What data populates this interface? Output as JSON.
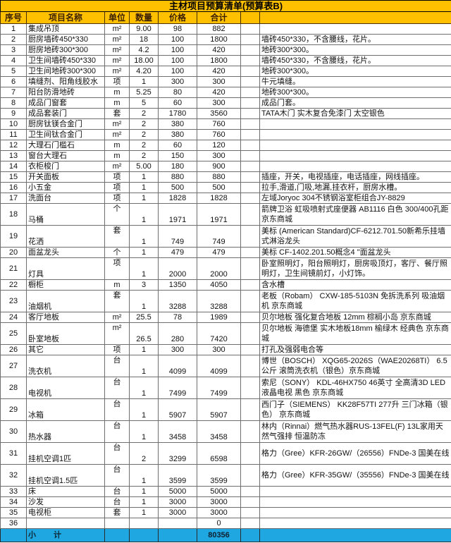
{
  "title": "主材项目预算清单(预算表B)",
  "columns": [
    "序号",
    "项目名称",
    "单位",
    "数量",
    "价格",
    "合计",
    "",
    ""
  ],
  "colors": {
    "header_bg": "#FFC000",
    "subtotal_bg": "#1EA7E0",
    "grid": "#6e6e6e"
  },
  "rows": [
    {
      "no": "1",
      "name": "集成吊顶",
      "unit": "m²",
      "qty": "9.00",
      "price": "98",
      "total": "882",
      "remark": "",
      "tall": false
    },
    {
      "no": "2",
      "name": "厨房墙砖450*330",
      "unit": "m²",
      "qty": "18",
      "price": "100",
      "total": "1800",
      "remark": "墙砖450*330，不含腰线，花片。",
      "tall": false
    },
    {
      "no": "3",
      "name": "厨房地砖300*300",
      "unit": "m²",
      "qty": "4.2",
      "price": "100",
      "total": "420",
      "remark": "地砖300*300。",
      "tall": false
    },
    {
      "no": "4",
      "name": "卫生间墙砖450*330",
      "unit": "m²",
      "qty": "18.00",
      "price": "100",
      "total": "1800",
      "remark": "墙砖450*330，不含腰线，花片。",
      "tall": false
    },
    {
      "no": "5",
      "name": "卫生间地砖300*300",
      "unit": "m²",
      "qty": "4.20",
      "price": "100",
      "total": "420",
      "remark": "地砖300*300。",
      "tall": false
    },
    {
      "no": "6",
      "name": "填缝剂、阳角线胶水",
      "unit": "项",
      "qty": "1",
      "price": "300",
      "total": "300",
      "remark": "牛元填缝。",
      "tall": false
    },
    {
      "no": "7",
      "name": "阳台防滑地砖",
      "unit": "m",
      "qty": "5.25",
      "price": "80",
      "total": "420",
      "remark": "地砖300*300。",
      "tall": false
    },
    {
      "no": "8",
      "name": "成品门窗套",
      "unit": "m",
      "qty": "5",
      "price": "60",
      "total": "300",
      "remark": "成品门套。",
      "tall": false
    },
    {
      "no": "9",
      "name": "成品套装门",
      "unit": "套",
      "qty": "2",
      "price": "1780",
      "total": "3560",
      "remark": "TATA木门 实木复合免漆门 太空银色",
      "tall": false
    },
    {
      "no": "10",
      "name": "厨房钛镁合金门",
      "unit": "m²",
      "qty": "2",
      "price": "380",
      "total": "760",
      "remark": "",
      "tall": false
    },
    {
      "no": "11",
      "name": "卫生间钛合金门",
      "unit": "m²",
      "qty": "2",
      "price": "380",
      "total": "760",
      "remark": "",
      "tall": false
    },
    {
      "no": "12",
      "name": "大理石门槛石",
      "unit": "m",
      "qty": "2",
      "price": "60",
      "total": "120",
      "remark": "",
      "tall": false
    },
    {
      "no": "13",
      "name": "窗台大理石",
      "unit": "m",
      "qty": "2",
      "price": "150",
      "total": "300",
      "remark": "",
      "tall": false
    },
    {
      "no": "14",
      "name": "衣柜梭门",
      "unit": "m²",
      "qty": "5.00",
      "price": "180",
      "total": "900",
      "remark": "",
      "tall": false
    },
    {
      "no": "15",
      "name": "开关面板",
      "unit": "项",
      "qty": "1",
      "price": "880",
      "total": "880",
      "remark": "插座，开关，电视插座，电话插座，网线插座。",
      "tall": false
    },
    {
      "no": "16",
      "name": "小五金",
      "unit": "项",
      "qty": "1",
      "price": "500",
      "total": "500",
      "remark": "拉手,滑道,门吸,地漏,挂衣杆，厨房水槽。",
      "tall": false
    },
    {
      "no": "17",
      "name": "洗面台",
      "unit": "项",
      "qty": "1",
      "price": "1828",
      "total": "1828",
      "remark": "左域Joryoc 304不锈钢浴室柜组合JY-8829",
      "tall": false
    },
    {
      "no": "18",
      "name": "马桶",
      "unit": "个",
      "qty": "1",
      "price": "1971",
      "total": "1971",
      "remark": "箭牌卫浴 虹吸喷射式座便器 AB1116  白色 300/400孔距 京东商城",
      "tall": true
    },
    {
      "no": "19",
      "name": "花洒",
      "unit": "套",
      "qty": "1",
      "price": "749",
      "total": "749",
      "remark": "美标 (American Standard)CF-6212.701.50新希乐挂墙式淋浴龙头",
      "tall": true
    },
    {
      "no": "20",
      "name": "面盆龙头",
      "unit": "个",
      "qty": "1",
      "price": "479",
      "total": "479",
      "remark": "美标 CF-1402.201.50概念4 \"面盆龙头",
      "tall": false
    },
    {
      "no": "21",
      "name": "灯具",
      "unit": "项",
      "qty": "1",
      "price": "2000",
      "total": "2000",
      "remark": "卧室照明灯，阳台照明灯，厨房吸顶灯，客厅、餐厅照明灯，卫生间镜前灯，小灯饰。",
      "tall": true
    },
    {
      "no": "22",
      "name": "橱柜",
      "unit": "m",
      "qty": "3",
      "price": "1350",
      "total": "4050",
      "remark": "含水槽",
      "tall": false
    },
    {
      "no": "23",
      "name": "油烟机",
      "unit": "套",
      "qty": "1",
      "price": "3288",
      "total": "3288",
      "remark": "老板（Robam） CXW-185-5103N 免拆洗系列 吸油烟机  京东商城",
      "tall": true
    },
    {
      "no": "24",
      "name": "客厅地板",
      "unit": "m²",
      "qty": "25.5",
      "price": "78",
      "total": "1989",
      "remark": "贝尔地板 强化复合地板 12mm 棕榈小岛 京东商城",
      "tall": false
    },
    {
      "no": "25",
      "name": "卧室地板",
      "unit": "m²",
      "qty": "26.5",
      "price": "280",
      "total": "7420",
      "remark": "贝尔地板 海德堡 实木地板18mm 榆绿木 经典色 京东商城",
      "tall": true
    },
    {
      "no": "26",
      "name": "其它",
      "unit": "项",
      "qty": "1",
      "price": "300",
      "total": "300",
      "remark": "打孔及强弱电合等",
      "tall": false
    },
    {
      "no": "27",
      "name": "洗衣机",
      "unit": "台",
      "qty": "1",
      "price": "4099",
      "total": "4099",
      "remark": "博世（BOSCH） XQG65-2026S（WAE20268TI） 6.5公斤 滚筒洗衣机（银色）京东商城",
      "tall": true
    },
    {
      "no": "28",
      "name": "电视机",
      "unit": "台",
      "qty": "1",
      "price": "7499",
      "total": "7499",
      "remark": "索尼（SONY） KDL-46HX750 46英寸 全高清3D LED液晶电视 黑色  京东商城",
      "tall": true
    },
    {
      "no": "29",
      "name": "冰箱",
      "unit": "台",
      "qty": "1",
      "price": "5907",
      "total": "5907",
      "remark": "西门子（SIEMENS） KK28F57TI 277升 三门冰箱（银色） 京东商城",
      "tall": true
    },
    {
      "no": "30",
      "name": "热水器",
      "unit": "台",
      "qty": "1",
      "price": "3458",
      "total": "3458",
      "remark": "林内（Rinnai）燃气热水器RUS-13FEL(F) 13L家用天然气强排 恒温防冻",
      "tall": true
    },
    {
      "no": "31",
      "name": "挂机空调1匹",
      "unit": "台",
      "qty": "2",
      "price": "3299",
      "total": "6598",
      "remark": "格力（Gree）KFR-26GW/（26556）FNDe-3  国美在线",
      "tall": true
    },
    {
      "no": "32",
      "name": "挂机空调1.5匹",
      "unit": "台",
      "qty": "1",
      "price": "3599",
      "total": "3599",
      "remark": "格力（Gree）KFR-35GW/（35556）FNDe-3  国美在线",
      "tall": true
    },
    {
      "no": "33",
      "name": "床",
      "unit": "台",
      "qty": "1",
      "price": "5000",
      "total": "5000",
      "remark": "",
      "tall": false
    },
    {
      "no": "34",
      "name": "沙发",
      "unit": "台",
      "qty": "1",
      "price": "3000",
      "total": "3000",
      "remark": "",
      "tall": false
    },
    {
      "no": "35",
      "name": "电视柜",
      "unit": "套",
      "qty": "1",
      "price": "3000",
      "total": "3000",
      "remark": "",
      "tall": false
    },
    {
      "no": "36",
      "name": "",
      "unit": "",
      "qty": "",
      "price": "",
      "total": "0",
      "remark": "",
      "tall": false
    }
  ],
  "subtotal": {
    "label": "小　　计",
    "total": "80356"
  }
}
